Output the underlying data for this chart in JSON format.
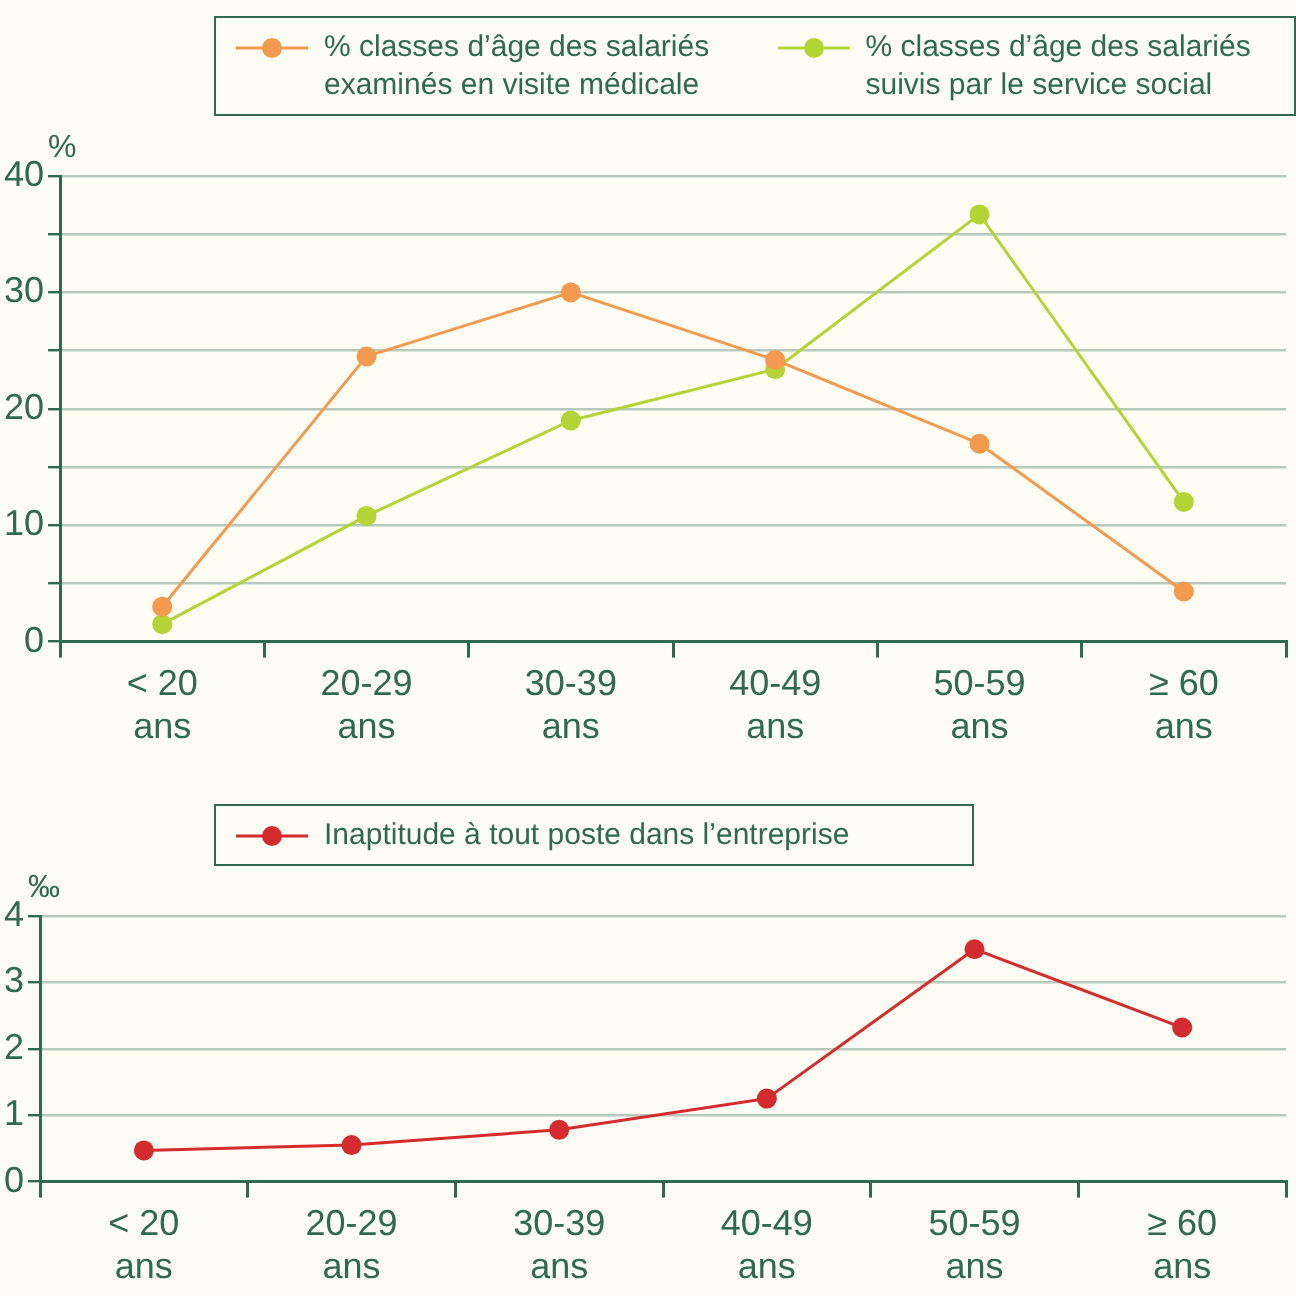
{
  "chart_data": [
    {
      "type": "line",
      "ylabel": "%",
      "categories": [
        "< 20 ans",
        "20-29 ans",
        "30-39 ans",
        "40-49 ans",
        "50-59 ans",
        "≥ 60 ans"
      ],
      "series": [
        {
          "name": "% classes d’âge des salariés examinés en visite médicale",
          "color": "#f39a4f",
          "values": [
            3,
            24.5,
            30,
            24.2,
            17,
            4.3
          ]
        },
        {
          "name": "% classes d’âge des salariés suivis par le service social",
          "color": "#b5d334",
          "values": [
            1.5,
            10.8,
            19,
            23.4,
            36.7,
            12
          ]
        }
      ],
      "ylim": [
        0,
        40
      ],
      "yticks": [
        0,
        {
          "value": 5,
          "label": null
        },
        10,
        {
          "value": 15,
          "label": null
        },
        20,
        {
          "value": 25,
          "label": null
        },
        30,
        {
          "value": 35,
          "label": null
        },
        40
      ],
      "grid": "y",
      "legend": "top right",
      "marker": "circle",
      "line_style": "solid"
    },
    {
      "type": "line",
      "ylabel": "‰",
      "categories": [
        "< 20 ans",
        "20-29 ans",
        "30-39 ans",
        "40-49 ans",
        "50-59 ans",
        "≥ 60 ans"
      ],
      "series": [
        {
          "name": "Inaptitude à tout poste dans l’entreprise",
          "color": "#d42b2f",
          "values": [
            0.47,
            0.55,
            0.78,
            1.25,
            3.5,
            2.32
          ]
        }
      ],
      "ylim": [
        0,
        4
      ],
      "yticks": [
        0,
        1,
        2,
        3,
        4
      ],
      "grid": "y",
      "legend": "top",
      "marker": "circle",
      "line_style": "solid"
    }
  ]
}
